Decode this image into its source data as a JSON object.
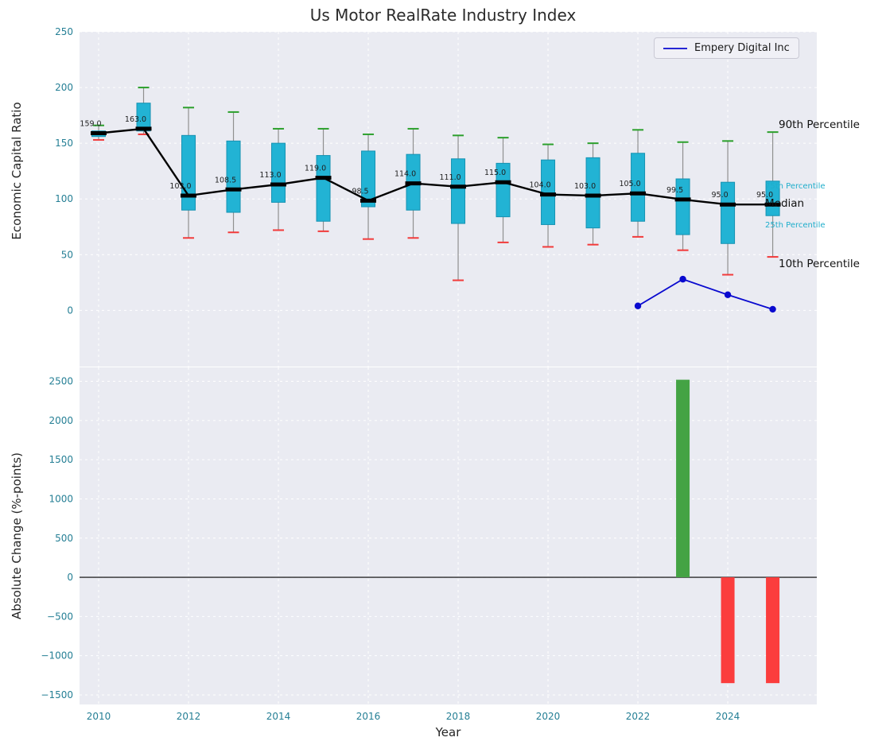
{
  "chart_data": [
    {
      "type": "box-line",
      "title": "Us Motor RealRate Industry Index",
      "ylabel": "Economic Capital Ratio",
      "xlim": [
        2009.575,
        2025.981
      ],
      "ylim": [
        -50.4,
        250
      ],
      "yticks": [
        0,
        50,
        100,
        150,
        200,
        250
      ],
      "xticks": [
        2010,
        2012,
        2014,
        2016,
        2018,
        2020,
        2022,
        2024
      ],
      "grid": true,
      "legend_position": "upper right",
      "years": [
        2010,
        2011,
        2012,
        2013,
        2014,
        2015,
        2016,
        2017,
        2018,
        2019,
        2020,
        2021,
        2022,
        2023,
        2024,
        2025
      ],
      "median": [
        159.0,
        163.0,
        103.0,
        108.5,
        113.0,
        119.0,
        98.5,
        114.0,
        111.0,
        115.0,
        104.0,
        103.0,
        105.0,
        99.5,
        95.0,
        95.0
      ],
      "p25": [
        156,
        161,
        90,
        88,
        97,
        80,
        93,
        90,
        78,
        84,
        77,
        74,
        80,
        68,
        60,
        85
      ],
      "p75": [
        161,
        186,
        157,
        152,
        150,
        139,
        143,
        140,
        136,
        132,
        135,
        137,
        141,
        118,
        115,
        116
      ],
      "p10": [
        153,
        158,
        65,
        70,
        72,
        71,
        64,
        65,
        27,
        61,
        57,
        59,
        66,
        54,
        32,
        48
      ],
      "p90": [
        166,
        200,
        182,
        178,
        163,
        163,
        158,
        163,
        157,
        155,
        149,
        150,
        162,
        151,
        152,
        160
      ],
      "series": [
        {
          "name": "Empery Digital Inc",
          "x": [
            2022,
            2023,
            2024,
            2025
          ],
          "values": [
            4,
            28,
            14,
            1
          ]
        }
      ],
      "annotations": {
        "p90": "90th Percentile",
        "p75": "75th Percentile",
        "median": "Median",
        "p25": "25th Percentile",
        "p10": "10th Percentile"
      }
    },
    {
      "type": "bar",
      "ylabel": "Absolute Change (%-points)",
      "xlabel": "Year",
      "xlim": [
        2009.575,
        2025.981
      ],
      "ylim": [
        -1622,
        2678
      ],
      "yticks": [
        -1500,
        -1000,
        -500,
        0,
        500,
        1000,
        1500,
        2000,
        2500
      ],
      "xticks": [
        2010,
        2012,
        2014,
        2016,
        2018,
        2020,
        2022,
        2024
      ],
      "grid": true,
      "x": [
        2023,
        2024,
        2025
      ],
      "values": [
        2520,
        -1350,
        -1350
      ]
    }
  ],
  "colors": {
    "plot_bg": "#eaebf2",
    "box_fill": "#22b3d4",
    "box_edge": "#1692b2",
    "median": "#000000",
    "p90_cap": "#2ca02c",
    "p10_cap": "#f23a3a",
    "series_line": "#0909cf",
    "bar_positive": "#44a344",
    "bar_negative": "#fb3d3d",
    "tick_label": "#257f95",
    "annotation_small": "#1faecb"
  }
}
